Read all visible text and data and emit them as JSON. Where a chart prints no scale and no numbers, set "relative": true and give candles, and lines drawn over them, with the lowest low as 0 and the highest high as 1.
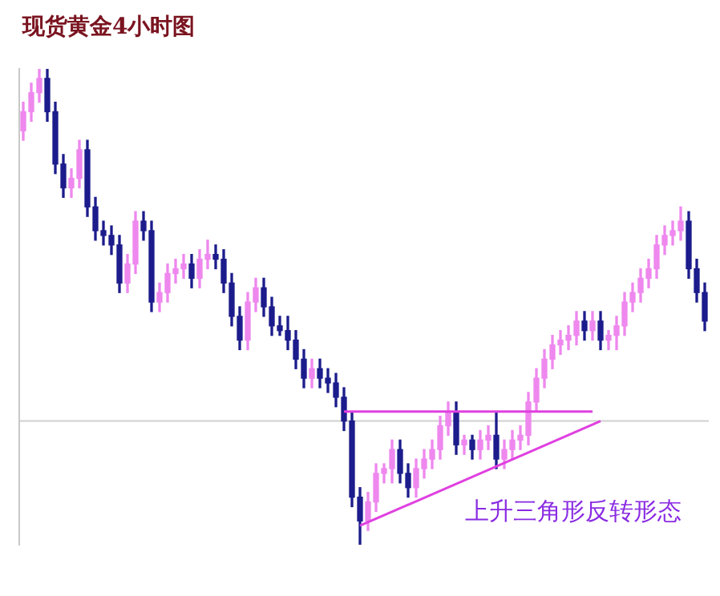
{
  "chart_data": {
    "type": "candlestick",
    "title": "现货黄金4小时图",
    "relative": true,
    "grid": false,
    "legend": false,
    "annotations": [
      "上升三角形反转形态"
    ],
    "categories": [
      null,
      null,
      null,
      null,
      null,
      null,
      null,
      null,
      null,
      null,
      null,
      null,
      null,
      null,
      null,
      null,
      null,
      null,
      null,
      null,
      null,
      null,
      null,
      null,
      null,
      null,
      null,
      null,
      null,
      null,
      null,
      null,
      null,
      null,
      null,
      null,
      null,
      null,
      null,
      null,
      null,
      null,
      null,
      null,
      null,
      null,
      null,
      null,
      null,
      null,
      null,
      null,
      null,
      null,
      null,
      null,
      null,
      null,
      null,
      null,
      null,
      null,
      null,
      null,
      null,
      null,
      null,
      null,
      null,
      null,
      null,
      null,
      null,
      null,
      null,
      null,
      null,
      null,
      null,
      null,
      null,
      null,
      null,
      null,
      null,
      null
    ],
    "ohlc": [
      [
        0.87,
        0.93,
        0.85,
        0.91
      ],
      [
        0.91,
        0.97,
        0.89,
        0.95
      ],
      [
        0.95,
        1.0,
        0.93,
        0.98
      ],
      [
        0.98,
        1.0,
        0.89,
        0.91
      ],
      [
        0.91,
        0.93,
        0.78,
        0.8
      ],
      [
        0.8,
        0.82,
        0.73,
        0.75
      ],
      [
        0.75,
        0.79,
        0.73,
        0.77
      ],
      [
        0.77,
        0.85,
        0.75,
        0.83
      ],
      [
        0.83,
        0.85,
        0.69,
        0.71
      ],
      [
        0.71,
        0.73,
        0.64,
        0.66
      ],
      [
        0.66,
        0.68,
        0.63,
        0.65
      ],
      [
        0.65,
        0.67,
        0.61,
        0.63
      ],
      [
        0.63,
        0.65,
        0.53,
        0.55
      ],
      [
        0.55,
        0.61,
        0.53,
        0.59
      ],
      [
        0.59,
        0.7,
        0.57,
        0.68
      ],
      [
        0.68,
        0.7,
        0.64,
        0.66
      ],
      [
        0.66,
        0.68,
        0.49,
        0.51
      ],
      [
        0.51,
        0.55,
        0.49,
        0.53
      ],
      [
        0.53,
        0.59,
        0.51,
        0.57
      ],
      [
        0.57,
        0.6,
        0.55,
        0.58
      ],
      [
        0.58,
        0.61,
        0.56,
        0.59
      ],
      [
        0.59,
        0.61,
        0.54,
        0.56
      ],
      [
        0.56,
        0.62,
        0.54,
        0.6
      ],
      [
        0.6,
        0.64,
        0.58,
        0.61
      ],
      [
        0.61,
        0.63,
        0.58,
        0.6
      ],
      [
        0.6,
        0.62,
        0.53,
        0.55
      ],
      [
        0.55,
        0.57,
        0.46,
        0.48
      ],
      [
        0.48,
        0.5,
        0.41,
        0.43
      ],
      [
        0.43,
        0.53,
        0.41,
        0.51
      ],
      [
        0.51,
        0.56,
        0.49,
        0.54
      ],
      [
        0.54,
        0.56,
        0.48,
        0.5
      ],
      [
        0.5,
        0.52,
        0.44,
        0.46
      ],
      [
        0.46,
        0.48,
        0.44,
        0.45
      ],
      [
        0.45,
        0.48,
        0.41,
        0.43
      ],
      [
        0.43,
        0.45,
        0.37,
        0.39
      ],
      [
        0.39,
        0.41,
        0.33,
        0.35
      ],
      [
        0.35,
        0.39,
        0.33,
        0.37
      ],
      [
        0.37,
        0.39,
        0.33,
        0.35
      ],
      [
        0.35,
        0.37,
        0.32,
        0.34
      ],
      [
        0.34,
        0.36,
        0.29,
        0.31
      ],
      [
        0.31,
        0.33,
        0.24,
        0.26
      ],
      [
        0.26,
        0.28,
        0.08,
        0.1
      ],
      [
        0.1,
        0.12,
        0.0,
        0.05
      ],
      [
        0.05,
        0.11,
        0.03,
        0.09
      ],
      [
        0.09,
        0.17,
        0.07,
        0.15
      ],
      [
        0.15,
        0.17,
        0.13,
        0.16
      ],
      [
        0.16,
        0.22,
        0.13,
        0.2
      ],
      [
        0.2,
        0.22,
        0.13,
        0.15
      ],
      [
        0.15,
        0.17,
        0.1,
        0.12
      ],
      [
        0.12,
        0.18,
        0.1,
        0.16
      ],
      [
        0.16,
        0.2,
        0.14,
        0.18
      ],
      [
        0.18,
        0.22,
        0.16,
        0.2
      ],
      [
        0.2,
        0.27,
        0.18,
        0.25
      ],
      [
        0.25,
        0.3,
        0.23,
        0.28
      ],
      [
        0.28,
        0.3,
        0.19,
        0.21
      ],
      [
        0.21,
        0.23,
        0.19,
        0.22
      ],
      [
        0.22,
        0.23,
        0.18,
        0.2
      ],
      [
        0.2,
        0.24,
        0.18,
        0.22
      ],
      [
        0.22,
        0.25,
        0.2,
        0.23
      ],
      [
        0.23,
        0.28,
        0.16,
        0.18
      ],
      [
        0.18,
        0.22,
        0.16,
        0.2
      ],
      [
        0.2,
        0.24,
        0.18,
        0.22
      ],
      [
        0.22,
        0.25,
        0.2,
        0.23
      ],
      [
        0.23,
        0.32,
        0.21,
        0.3
      ],
      [
        0.3,
        0.37,
        0.28,
        0.35
      ],
      [
        0.35,
        0.41,
        0.33,
        0.39
      ],
      [
        0.39,
        0.44,
        0.37,
        0.42
      ],
      [
        0.42,
        0.45,
        0.4,
        0.43
      ],
      [
        0.43,
        0.46,
        0.41,
        0.44
      ],
      [
        0.44,
        0.49,
        0.42,
        0.47
      ],
      [
        0.47,
        0.49,
        0.43,
        0.45
      ],
      [
        0.45,
        0.49,
        0.43,
        0.47
      ],
      [
        0.47,
        0.49,
        0.41,
        0.43
      ],
      [
        0.43,
        0.45,
        0.41,
        0.44
      ],
      [
        0.44,
        0.48,
        0.41,
        0.46
      ],
      [
        0.46,
        0.53,
        0.44,
        0.51
      ],
      [
        0.51,
        0.55,
        0.49,
        0.53
      ],
      [
        0.53,
        0.58,
        0.51,
        0.56
      ],
      [
        0.56,
        0.6,
        0.54,
        0.58
      ],
      [
        0.58,
        0.65,
        0.56,
        0.63
      ],
      [
        0.63,
        0.67,
        0.61,
        0.65
      ],
      [
        0.65,
        0.68,
        0.63,
        0.66
      ],
      [
        0.66,
        0.71,
        0.64,
        0.68
      ],
      [
        0.68,
        0.7,
        0.56,
        0.58
      ],
      [
        0.58,
        0.6,
        0.51,
        0.53
      ],
      [
        0.53,
        0.55,
        0.45,
        0.47
      ]
    ],
    "series": [
      {
        "type": "line",
        "color": "#e040e0",
        "values": [
          null,
          null,
          null,
          null,
          null,
          null,
          null,
          null,
          null,
          null,
          null,
          null,
          null,
          null,
          null,
          null,
          null,
          null,
          null,
          null,
          null,
          null,
          null,
          null,
          null,
          null,
          null,
          null,
          null,
          null,
          null,
          null,
          null,
          null,
          null,
          null,
          null,
          null,
          null,
          null,
          0.28,
          null,
          null,
          null,
          null,
          null,
          null,
          null,
          null,
          null,
          null,
          null,
          null,
          null,
          null,
          null,
          null,
          null,
          null,
          null,
          null,
          null,
          null,
          null,
          null,
          null,
          null,
          null,
          null,
          null,
          null,
          0.28,
          null,
          null,
          null,
          null,
          null,
          null,
          null,
          null,
          null,
          null,
          null,
          null,
          null,
          null
        ]
      },
      {
        "type": "line",
        "color": "#e040e0",
        "values": [
          null,
          null,
          null,
          null,
          null,
          null,
          null,
          null,
          null,
          null,
          null,
          null,
          null,
          null,
          null,
          null,
          null,
          null,
          null,
          null,
          null,
          null,
          null,
          null,
          null,
          null,
          null,
          null,
          null,
          null,
          null,
          null,
          null,
          null,
          null,
          null,
          null,
          null,
          null,
          null,
          null,
          null,
          0.04,
          null,
          null,
          null,
          null,
          null,
          null,
          null,
          null,
          null,
          null,
          null,
          null,
          null,
          null,
          null,
          null,
          null,
          null,
          null,
          null,
          null,
          null,
          null,
          null,
          null,
          null,
          null,
          null,
          null,
          0.26,
          null,
          null,
          null,
          null,
          null,
          null,
          null,
          null,
          null,
          null,
          null,
          null,
          null
        ]
      }
    ],
    "ref_lines": [
      {
        "axis": "y",
        "value": 0.26,
        "color": "#d0d0d0"
      }
    ]
  }
}
